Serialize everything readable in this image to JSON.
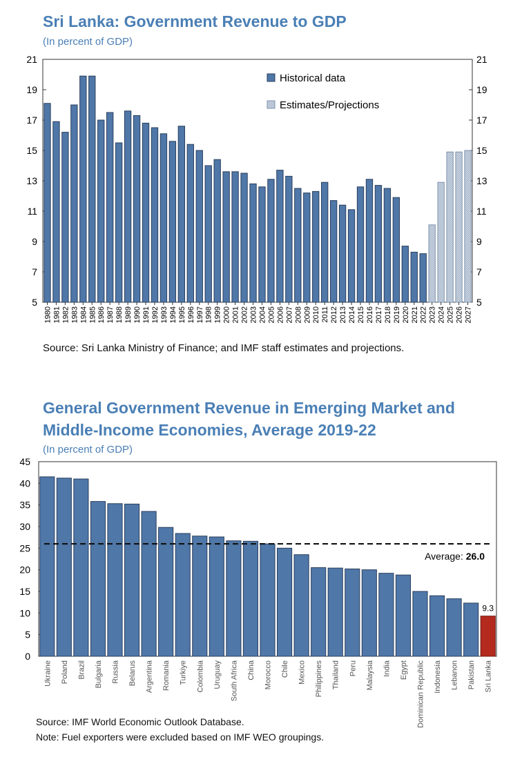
{
  "chart_data": [
    {
      "type": "bar",
      "title": "Sri Lanka: Government Revenue to GDP",
      "subtitle": "(In percent of GDP)",
      "ylim": [
        5,
        21
      ],
      "yticks": [
        5,
        7,
        9,
        11,
        13,
        15,
        17,
        19,
        21
      ],
      "grid": false,
      "legend_position": "top-right",
      "categories": [
        "1980",
        "1981",
        "1982",
        "1983",
        "1984",
        "1985",
        "1986",
        "1987",
        "1988",
        "1989",
        "1990",
        "1991",
        "1992",
        "1993",
        "1994",
        "1995",
        "1996",
        "1997",
        "1998",
        "1999",
        "2000",
        "2001",
        "2002",
        "2003",
        "2004",
        "2005",
        "2006",
        "2007",
        "2008",
        "2009",
        "2010",
        "2011",
        "2012",
        "2013",
        "2014",
        "2015",
        "2016",
        "2017",
        "2018",
        "2019",
        "2020",
        "2021",
        "2022",
        "2023",
        "2024",
        "2025",
        "2026",
        "2027"
      ],
      "series": [
        {
          "name": "Historical data",
          "color": "#4f77a8",
          "values": [
            18.1,
            16.9,
            16.2,
            18.0,
            19.9,
            19.9,
            17.0,
            17.5,
            15.5,
            17.6,
            17.3,
            16.8,
            16.5,
            16.1,
            15.6,
            16.6,
            15.4,
            15.0,
            14.0,
            14.4,
            13.6,
            13.6,
            13.5,
            12.8,
            12.6,
            13.1,
            13.7,
            13.3,
            12.5,
            12.2,
            12.3,
            12.9,
            11.7,
            11.4,
            11.1,
            12.6,
            13.1,
            12.7,
            12.5,
            11.9,
            8.7,
            8.3,
            8.2,
            null,
            null,
            null,
            null,
            null
          ]
        },
        {
          "name": "Estimates/Projections",
          "color": "#c9d3e0",
          "values": [
            null,
            null,
            null,
            null,
            null,
            null,
            null,
            null,
            null,
            null,
            null,
            null,
            null,
            null,
            null,
            null,
            null,
            null,
            null,
            null,
            null,
            null,
            null,
            null,
            null,
            null,
            null,
            null,
            null,
            null,
            null,
            null,
            null,
            null,
            null,
            null,
            null,
            null,
            null,
            null,
            null,
            null,
            null,
            10.1,
            12.9,
            14.9,
            14.9,
            15.0
          ]
        }
      ],
      "source": "Source: Sri Lanka Ministry of Finance; and IMF staff estimates and projections."
    },
    {
      "type": "bar",
      "title_line1": "General Government Revenue in Emerging Market and",
      "title_line2": "Middle-Income Economies, Average 2019-22",
      "subtitle": "(In percent of GDP)",
      "ylim": [
        0,
        45
      ],
      "yticks": [
        0,
        5,
        10,
        15,
        20,
        25,
        30,
        35,
        40,
        45
      ],
      "grid": false,
      "categories": [
        "Ukraine",
        "Poland",
        "Brazil",
        "Bulgaria",
        "Russia",
        "Belarus",
        "Argentina",
        "Romania",
        "Turkiye",
        "Colombia",
        "Uruguay",
        "South Africa",
        "China",
        "Morocco",
        "Chile",
        "Mexico",
        "Philippines",
        "Thailand",
        "Peru",
        "Malaysia",
        "India",
        "Egypt",
        "Dominican Republic",
        "Indonesia",
        "Lebanon",
        "Pakistan",
        "Sri Lanka"
      ],
      "values": [
        41.5,
        41.2,
        41.0,
        35.8,
        35.3,
        35.2,
        33.5,
        29.8,
        28.4,
        27.8,
        27.6,
        26.7,
        26.6,
        26.0,
        25.0,
        23.5,
        20.5,
        20.4,
        20.2,
        20.0,
        19.2,
        18.8,
        15.0,
        14.0,
        13.3,
        12.3,
        9.3
      ],
      "bar_color": "#4f77a8",
      "highlight": {
        "category": "Sri Lanka",
        "color": "#b52a1e",
        "label": "9.3"
      },
      "average": {
        "value": 26.0,
        "label_prefix": "Average: ",
        "label_value": "26.0"
      },
      "source": "Source: IMF World Economic Outlook Database.",
      "note": "Note: Fuel exporters were excluded based on IMF WEO groupings."
    }
  ]
}
